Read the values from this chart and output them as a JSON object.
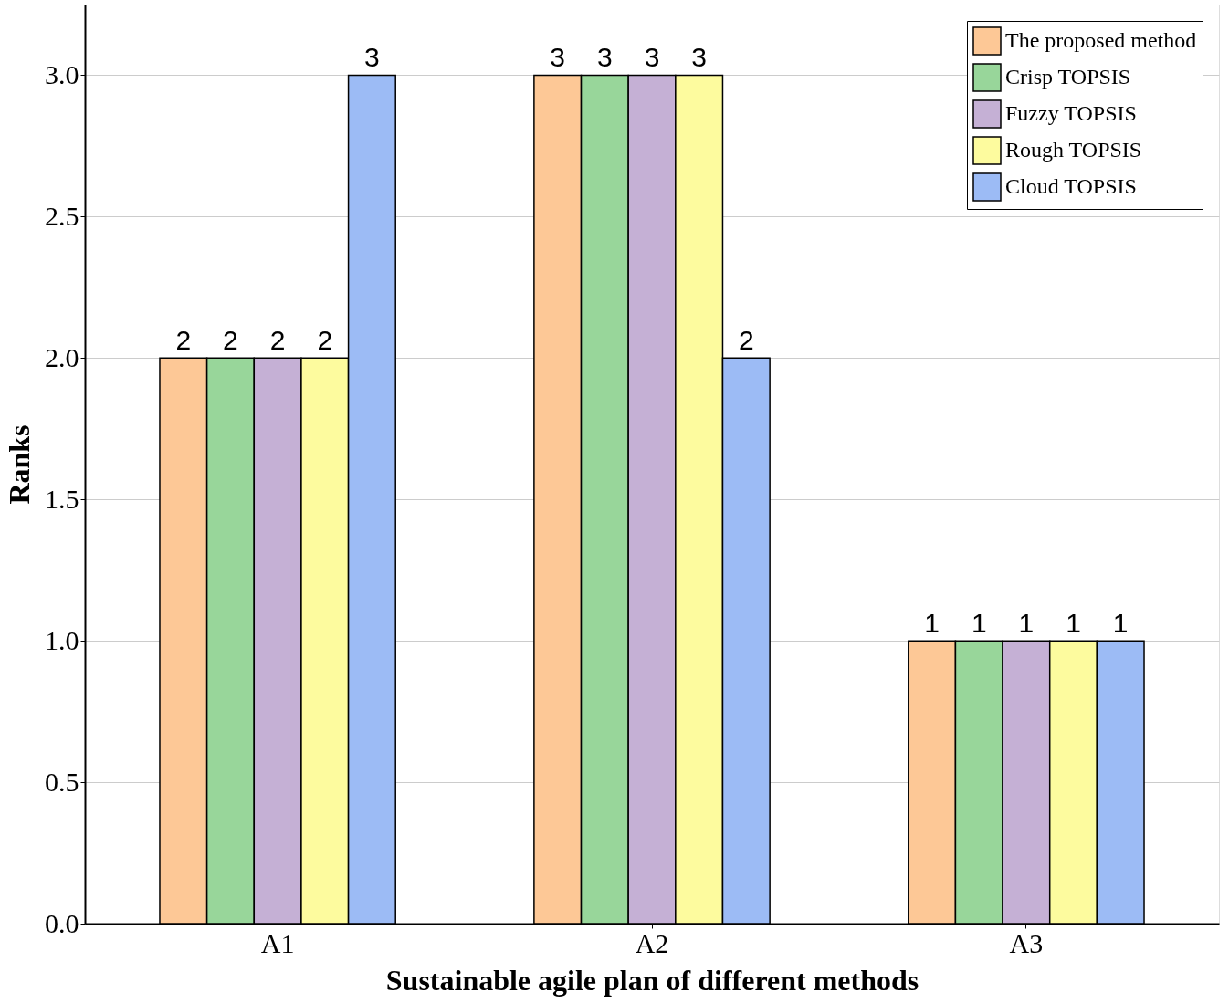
{
  "chart_data": {
    "type": "bar",
    "xlabel": "Sustainable agile plan of different methods",
    "ylabel": "Ranks",
    "categories": [
      "A1",
      "A2",
      "A3"
    ],
    "series": [
      {
        "name": "The proposed method",
        "color": "#fdc896",
        "values": [
          2,
          3,
          1
        ]
      },
      {
        "name": "Crisp TOPSIS",
        "color": "#98d69a",
        "values": [
          2,
          3,
          1
        ]
      },
      {
        "name": "Fuzzy TOPSIS",
        "color": "#c5b0d5",
        "values": [
          2,
          3,
          1
        ]
      },
      {
        "name": "Rough TOPSIS",
        "color": "#fdfb9e",
        "values": [
          2,
          3,
          1
        ]
      },
      {
        "name": "Cloud TOPSIS",
        "color": "#9cbbf5",
        "values": [
          3,
          2,
          1
        ]
      }
    ],
    "ylim": [
      0,
      3.25
    ],
    "yticks": [
      {
        "value": 0,
        "label": "0.0"
      },
      {
        "value": 0.5,
        "label": "0.5"
      },
      {
        "value": 1,
        "label": "1.0"
      },
      {
        "value": 1.5,
        "label": "1.5"
      },
      {
        "value": 2,
        "label": "2.0"
      },
      {
        "value": 2.5,
        "label": "2.5"
      },
      {
        "value": 3,
        "label": "3.0"
      }
    ],
    "grid": "y",
    "legend": "top right",
    "data_labels": true
  }
}
